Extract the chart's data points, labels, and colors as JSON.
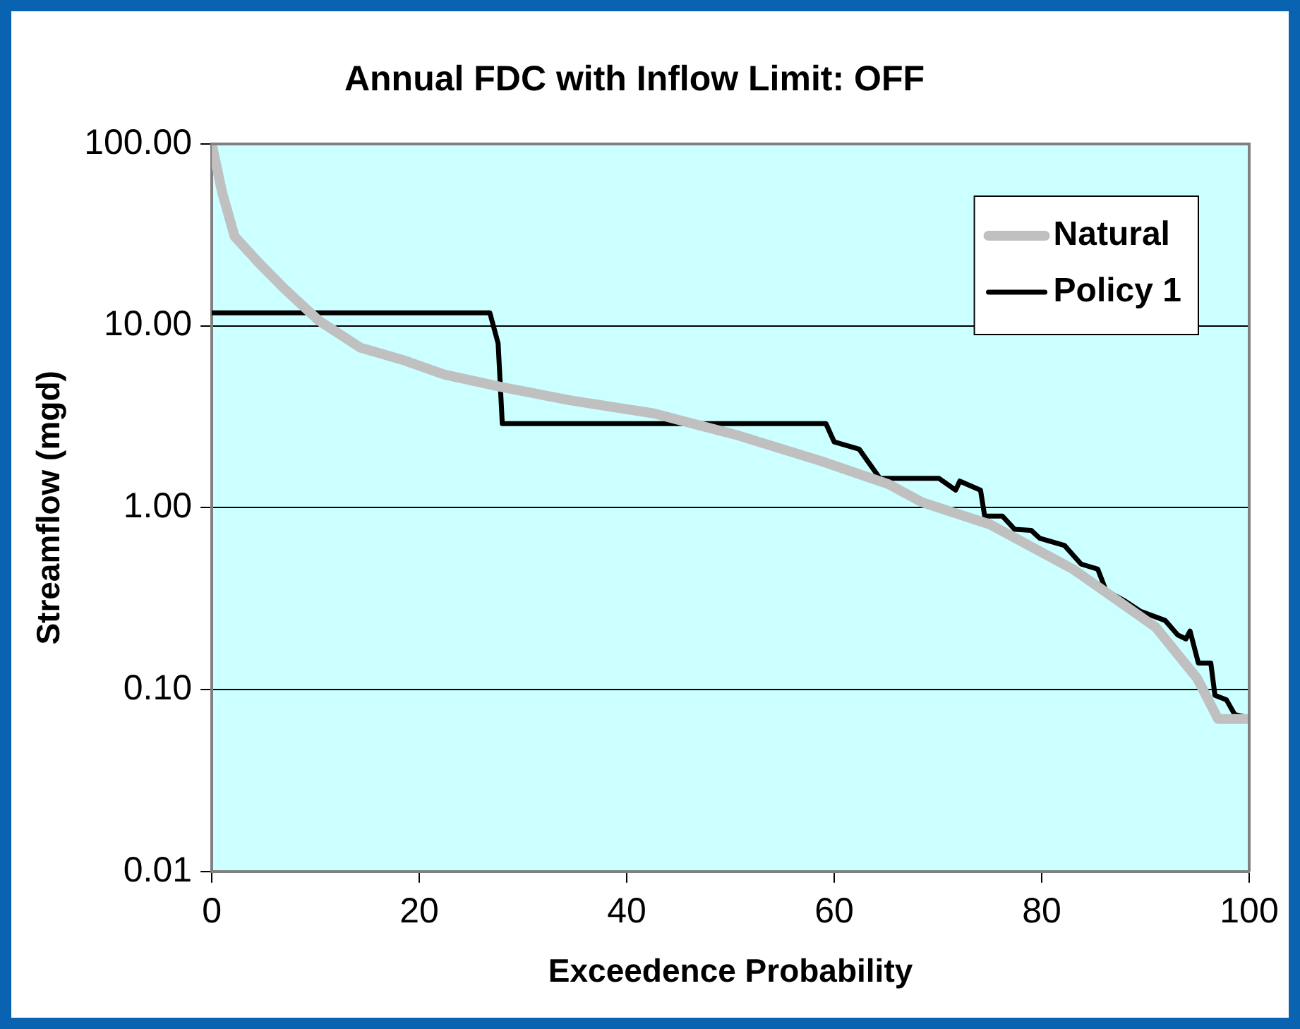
{
  "chart_data": {
    "type": "line",
    "title": "Annual FDC with Inflow Limit: OFF",
    "xlabel": "Exceedence Probability",
    "ylabel": "Streamflow (mgd)",
    "xlim": [
      0,
      100
    ],
    "xticks": [
      0,
      20,
      40,
      60,
      80,
      100
    ],
    "ylim": [
      0.01,
      100
    ],
    "yticks": [
      {
        "value": 0.01,
        "label": "0.01"
      },
      {
        "value": 0.1,
        "label": "0.10"
      },
      {
        "value": 1,
        "label": "1.00"
      },
      {
        "value": 10,
        "label": "10.00"
      },
      {
        "value": 100,
        "label": "100.00"
      }
    ],
    "log": "y",
    "grid": "y",
    "legend": "top right",
    "marker": "none",
    "line_style": "solid",
    "series": [
      {
        "name": "Natural",
        "color": "#c0c0c0",
        "x": [
          0,
          1,
          2.2,
          4.6,
          7,
          10.3,
          14.3,
          18.4,
          22.4,
          28,
          34.5,
          42.6,
          50.7,
          58.8,
          65.2,
          68.5,
          75,
          83,
          91,
          95,
          97,
          100
        ],
        "values": [
          100,
          54,
          31,
          22,
          16,
          10.7,
          7.6,
          6.5,
          5.4,
          4.6,
          3.9,
          3.3,
          2.5,
          1.8,
          1.35,
          1.07,
          0.81,
          0.46,
          0.22,
          0.115,
          0.069,
          0.069
        ]
      },
      {
        "name": "Policy 1",
        "color": "#000000",
        "x": [
          0,
          26.8,
          27.6,
          28,
          59.2,
          60,
          62.4,
          64.4,
          70.1,
          71.7,
          72.1,
          74.1,
          74.5,
          76.2,
          77.4,
          79,
          79.8,
          82.2,
          83.8,
          85.4,
          86.2,
          87.9,
          89.5,
          91.9,
          93.1,
          93.9,
          94.3,
          95.1,
          96.3,
          96.7,
          97.8,
          98.6,
          100
        ],
        "values": [
          11.8,
          11.8,
          8,
          2.9,
          2.9,
          2.3,
          2.1,
          1.45,
          1.45,
          1.25,
          1.4,
          1.25,
          0.9,
          0.9,
          0.76,
          0.75,
          0.68,
          0.62,
          0.49,
          0.46,
          0.35,
          0.31,
          0.27,
          0.24,
          0.2,
          0.19,
          0.21,
          0.14,
          0.14,
          0.093,
          0.088,
          0.073,
          0.07
        ]
      }
    ]
  }
}
